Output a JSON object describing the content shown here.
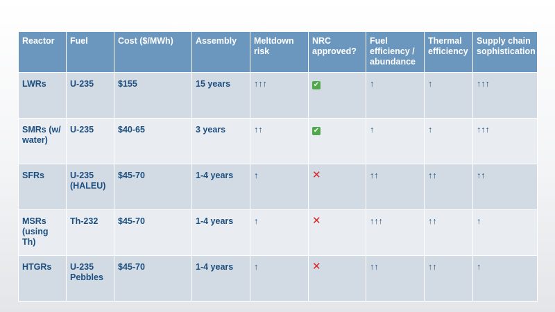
{
  "headers": [
    "Reactor",
    "Fuel",
    "Cost ($/MWh)",
    "Assembly",
    "Meltdown risk",
    "NRC approved?",
    "Fuel efficiency / abundance",
    "Thermal efficiency",
    "Supply chain sophistication"
  ],
  "rows": [
    {
      "reactor": "LWRs",
      "fuel": "U-235",
      "cost": "$155",
      "assembly": "15 years",
      "meltdown": "↑↑↑",
      "nrc": "✔",
      "fuel_eff": "↑",
      "thermal": "↑",
      "supply": "↑↑↑"
    },
    {
      "reactor": "SMRs (w/ water)",
      "fuel": "U-235",
      "cost": "$40-65",
      "assembly": "3 years",
      "meltdown": "↑↑",
      "nrc": "✔",
      "fuel_eff": "↑",
      "thermal": "↑",
      "supply": "↑↑↑"
    },
    {
      "reactor": "SFRs",
      "fuel": "U-235 (HALEU)",
      "cost": "$45-70",
      "assembly": "1-4 years",
      "meltdown": "↑",
      "nrc": "✕",
      "fuel_eff": "↑↑",
      "thermal": "↑↑",
      "supply": "↑↑"
    },
    {
      "reactor": "MSRs (using Th)",
      "fuel": "Th-232",
      "cost": "$45-70",
      "assembly": "1-4 years",
      "meltdown": "↑",
      "nrc": "✕",
      "fuel_eff": "↑↑↑",
      "thermal": "↑↑",
      "supply": "↑"
    },
    {
      "reactor": "HTGRs",
      "fuel": "U-235 Pebbles",
      "cost": "$45-70",
      "assembly": "1-4 years",
      "meltdown": "↑",
      "nrc": "✕",
      "fuel_eff": "↑↑",
      "thermal": "↑↑",
      "supply": "↑"
    }
  ],
  "colors": {
    "header_bg": "#6b96bd",
    "row_dark": "#d2dbe3",
    "row_light": "#e9edf1",
    "text": "#1c4e80",
    "approved": "#4fa84a",
    "rejected": "#d6262b"
  }
}
